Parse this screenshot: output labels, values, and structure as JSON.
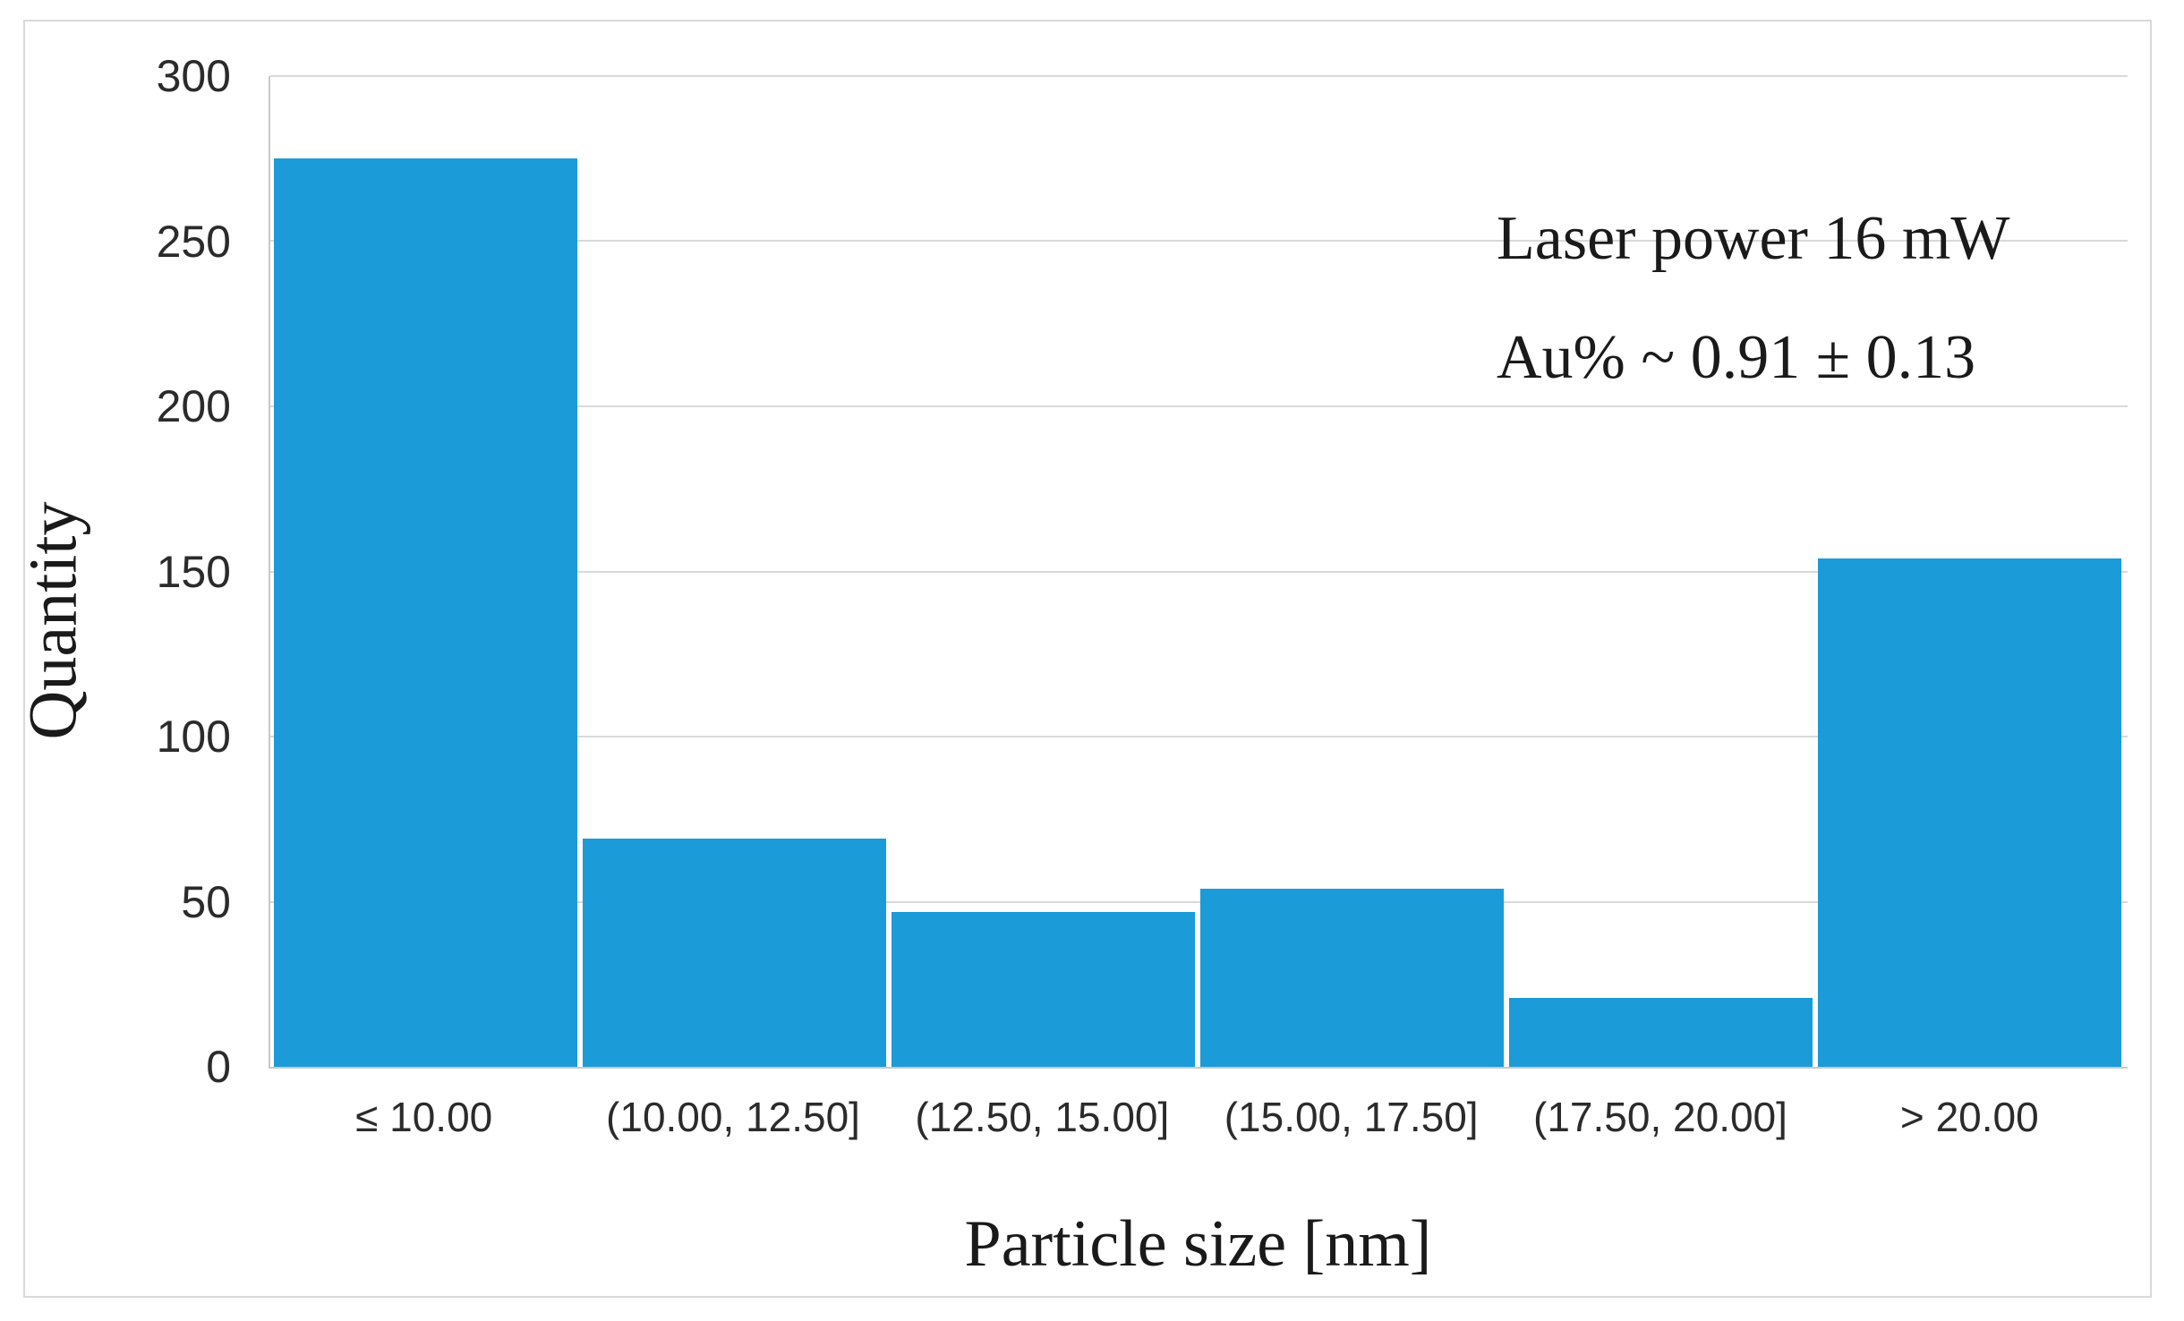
{
  "figure": {
    "background": "#ffffff",
    "border_color": "#d9d9d9"
  },
  "chart_data": {
    "type": "bar",
    "title": "",
    "categories": [
      "≤ 10.00",
      "(10.00, 12.50]",
      "(12.50, 15.00]",
      "(15.00, 17.50]",
      "(17.50, 20.00]",
      "> 20.00"
    ],
    "values": [
      275,
      69,
      47,
      54,
      21,
      154
    ],
    "xlabel": "Particle size [nm]",
    "ylabel": "Quantity",
    "ylim": [
      0,
      300
    ],
    "yticks": [
      300,
      250,
      200,
      150,
      100,
      50,
      0
    ],
    "grid": "horizontal",
    "legend": "none",
    "bar_color": "#1b9bd7",
    "gridline_color": "#d9d9d9",
    "axis_line_color": "#c9c9c9",
    "tick_label_color": "#2b2b2b",
    "text_color": "#1a1a1a",
    "annotation": {
      "line1": "Laser power 16 mW",
      "line2": "Au% ~ 0.91 ± 0.13"
    }
  }
}
